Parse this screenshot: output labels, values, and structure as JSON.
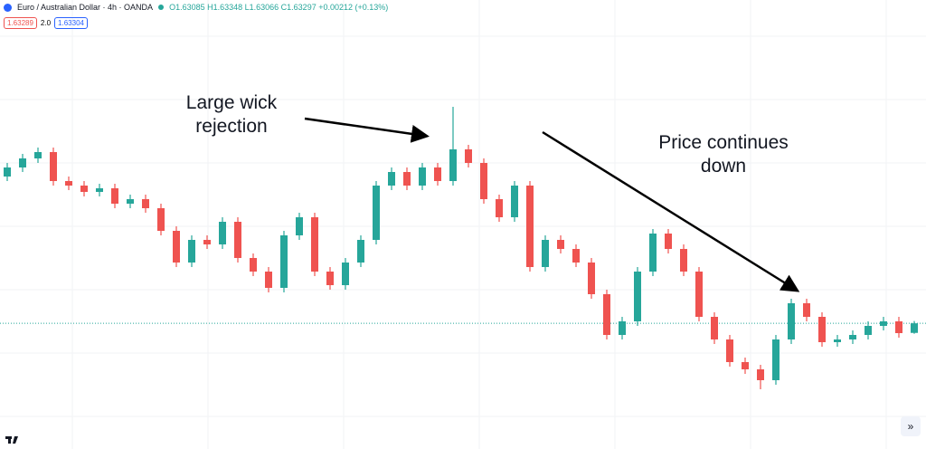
{
  "header": {
    "symbol": "Euro / Australian Dollar · 4h · OANDA",
    "ohlc": "O1.63085 H1.63348 L1.63066 C1.63297 +0.00212 (+0.13%)",
    "sell": "1.63289",
    "spread": "2.0",
    "buy": "1.63304"
  },
  "chart_data": {
    "type": "candlestick",
    "annotations": [
      {
        "lines": [
          "Large wick",
          "rejection"
        ]
      },
      {
        "lines": [
          "Price continues",
          "down"
        ]
      }
    ],
    "up_color": "#26a69a",
    "down_color": "#ef5350",
    "ylim": [
      1.6052,
      1.7044
    ],
    "open": [
      1.6654,
      1.6674,
      1.6694,
      1.6708,
      1.6644,
      1.6634,
      1.662,
      1.6628,
      1.6594,
      1.6604,
      1.6584,
      1.6534,
      1.6464,
      1.6514,
      1.6504,
      1.6554,
      1.6474,
      1.6444,
      1.6408,
      1.6524,
      1.6564,
      1.6444,
      1.6414,
      1.6464,
      1.6514,
      1.6634,
      1.6664,
      1.6634,
      1.6674,
      1.6644,
      1.6714,
      1.6684,
      1.6604,
      1.6564,
      1.6634,
      1.6454,
      1.6514,
      1.6494,
      1.6464,
      1.6394,
      1.6304,
      1.6334,
      1.6444,
      1.6528,
      1.6494,
      1.6444,
      1.6344,
      1.6294,
      1.6244,
      1.6228,
      1.6204,
      1.6294,
      1.6374,
      1.6344,
      1.6288,
      1.6294,
      1.6304,
      1.6324,
      1.6334,
      1.63085
    ],
    "high": [
      1.6684,
      1.6704,
      1.6718,
      1.6718,
      1.6654,
      1.6644,
      1.6638,
      1.6638,
      1.6614,
      1.6614,
      1.6594,
      1.6544,
      1.6524,
      1.6524,
      1.6564,
      1.6564,
      1.6484,
      1.6454,
      1.6534,
      1.6574,
      1.6574,
      1.6454,
      1.6474,
      1.6524,
      1.6644,
      1.6674,
      1.6674,
      1.6684,
      1.6684,
      1.6808,
      1.6724,
      1.6694,
      1.6614,
      1.6644,
      1.6644,
      1.6524,
      1.6524,
      1.6504,
      1.6474,
      1.6404,
      1.6344,
      1.6454,
      1.6538,
      1.6538,
      1.6504,
      1.6454,
      1.6354,
      1.6304,
      1.6254,
      1.6238,
      1.6304,
      1.6384,
      1.6384,
      1.6354,
      1.6304,
      1.6314,
      1.6334,
      1.6344,
      1.6344,
      1.63348
    ],
    "low": [
      1.6644,
      1.6664,
      1.6684,
      1.6634,
      1.6624,
      1.661,
      1.661,
      1.6584,
      1.6584,
      1.6574,
      1.6524,
      1.6454,
      1.6454,
      1.6494,
      1.6494,
      1.6464,
      1.6434,
      1.6398,
      1.6398,
      1.6514,
      1.6434,
      1.6404,
      1.6404,
      1.6454,
      1.6504,
      1.6624,
      1.6624,
      1.6624,
      1.6634,
      1.6634,
      1.6674,
      1.6594,
      1.6554,
      1.6554,
      1.6444,
      1.6444,
      1.6484,
      1.6454,
      1.6384,
      1.6294,
      1.6294,
      1.6324,
      1.6434,
      1.6484,
      1.6434,
      1.6334,
      1.6284,
      1.6234,
      1.6218,
      1.6184,
      1.6194,
      1.6284,
      1.6334,
      1.6278,
      1.6278,
      1.6284,
      1.6294,
      1.6314,
      1.6298,
      1.63066
    ],
    "close": [
      1.6674,
      1.6694,
      1.6708,
      1.6644,
      1.6634,
      1.662,
      1.6628,
      1.6594,
      1.6604,
      1.6584,
      1.6534,
      1.6464,
      1.6514,
      1.6504,
      1.6554,
      1.6474,
      1.6444,
      1.6408,
      1.6524,
      1.6564,
      1.6444,
      1.6414,
      1.6464,
      1.6514,
      1.6634,
      1.6664,
      1.6634,
      1.6674,
      1.6644,
      1.6714,
      1.6684,
      1.6604,
      1.6564,
      1.6634,
      1.6454,
      1.6514,
      1.6494,
      1.6464,
      1.6394,
      1.6304,
      1.6334,
      1.6444,
      1.6528,
      1.6494,
      1.6444,
      1.6344,
      1.6294,
      1.6244,
      1.6228,
      1.6204,
      1.6294,
      1.6374,
      1.6344,
      1.6288,
      1.6294,
      1.6304,
      1.6324,
      1.6334,
      1.6308,
      1.63297
    ]
  }
}
